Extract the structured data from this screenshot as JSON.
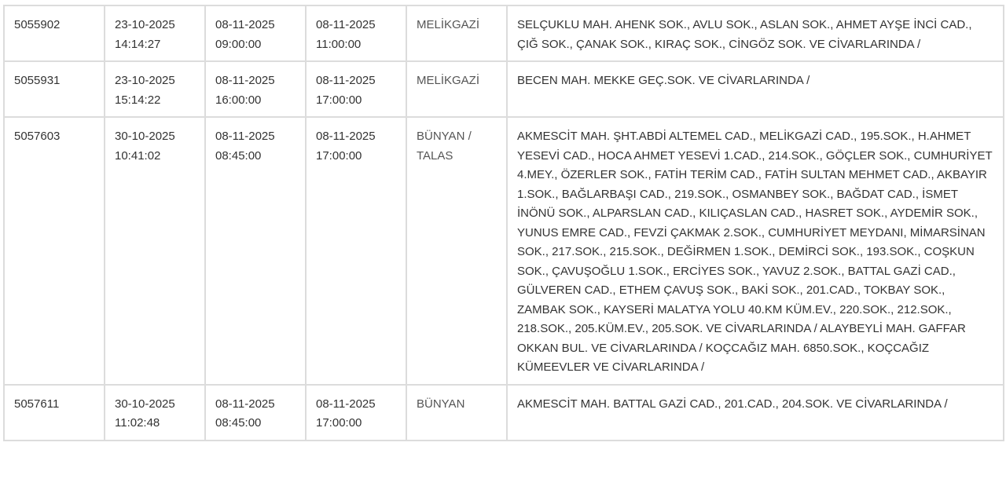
{
  "table": {
    "rows": [
      [
        "5055902",
        "23-10-2025 14:14:27",
        "08-11-2025 09:00:00",
        "08-11-2025 11:00:00",
        "MELİKGAZİ",
        "SELÇUKLU MAH. AHENK SOK., AVLU SOK., ASLAN SOK., AHMET AYŞE İNCİ CAD., ÇIĞ SOK., ÇANAK SOK., KIRAÇ SOK., CİNGÖZ SOK. VE CİVARLARINDA /"
      ],
      [
        "5055931",
        "23-10-2025 15:14:22",
        "08-11-2025 16:00:00",
        "08-11-2025 17:00:00",
        "MELİKGAZİ",
        "BECEN MAH. MEKKE GEÇ.SOK. VE CİVARLARINDA /"
      ],
      [
        "5057603",
        "30-10-2025 10:41:02",
        "08-11-2025 08:45:00",
        "08-11-2025 17:00:00",
        "BÜNYAN / TALAS",
        "AKMESCİT MAH. ŞHT.ABDİ ALTEMEL CAD., MELİKGAZİ CAD., 195.SOK., H.AHMET YESEVİ CAD., HOCA AHMET YESEVİ 1.CAD., 214.SOK., GÖÇLER SOK., CUMHURİYET 4.MEY., ÖZERLER SOK., FATİH TERİM CAD., FATİH SULTAN MEHMET CAD., AKBAYIR 1.SOK., BAĞLARBAŞI CAD., 219.SOK., OSMANBEY SOK., BAĞDAT CAD., İSMET İNÖNÜ SOK., ALPARSLAN CAD., KILIÇASLAN CAD., HASRET SOK., AYDEMİR SOK., YUNUS EMRE CAD., FEVZİ ÇAKMAK 2.SOK., CUMHURİYET MEYDANI, MİMARSİNAN SOK., 217.SOK., 215.SOK., DEĞİRMEN 1.SOK., DEMİRCİ SOK., 193.SOK., COŞKUN SOK., ÇAVUŞOĞLU 1.SOK., ERCİYES SOK., YAVUZ 2.SOK., BATTAL GAZİ CAD., GÜLVEREN CAD., ETHEM ÇAVUŞ SOK., BAKİ SOK., 201.CAD., TOKBAY SOK., ZAMBAK SOK., KAYSERİ MALATYA YOLU 40.KM KÜM.EV., 220.SOK., 212.SOK., 218.SOK., 205.KÜM.EV., 205.SOK. VE CİVARLARINDA / ALAYBEYLİ MAH. GAFFAR OKKAN BUL. VE CİVARLARINDA / KOÇCAĞIZ MAH. 6850.SOK., KOÇCAĞIZ KÜMEEVLER VE CİVARLARINDA /"
      ],
      [
        "5057611",
        "30-10-2025 11:02:48",
        "08-11-2025 08:45:00",
        "08-11-2025 17:00:00",
        "BÜNYAN",
        "AKMESCİT MAH. BATTAL GAZİ CAD., 201.CAD., 204.SOK. VE CİVARLARINDA /"
      ]
    ]
  }
}
